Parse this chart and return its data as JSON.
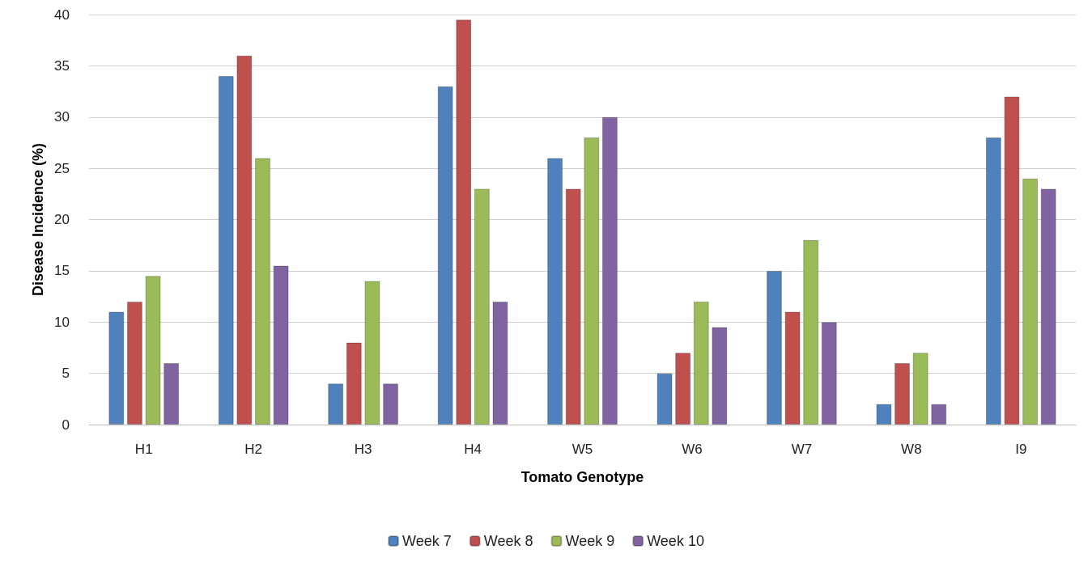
{
  "chart_data": {
    "type": "bar",
    "xlabel": "Tomato Genotype",
    "ylabel": "Disease Incidence (%)",
    "categories": [
      "H1",
      "H2",
      "H3",
      "H4",
      "W5",
      "W6",
      "W7",
      "W8",
      "I9"
    ],
    "series": [
      {
        "name": "Week 7",
        "color": "#4f81bd",
        "values": [
          11,
          34,
          4,
          33,
          26,
          5,
          15,
          2,
          28
        ]
      },
      {
        "name": "Week 8",
        "color": "#c0504d",
        "values": [
          12,
          36,
          8,
          39.5,
          23,
          7,
          11,
          6,
          32
        ]
      },
      {
        "name": "Week 9",
        "color": "#9bbb59",
        "values": [
          14.5,
          26,
          14,
          23,
          28,
          12,
          18,
          7,
          24
        ]
      },
      {
        "name": "Week 10",
        "color": "#8064a2",
        "values": [
          6,
          15.5,
          4,
          12,
          30,
          9.5,
          10,
          2,
          23
        ]
      }
    ],
    "ylim": [
      0,
      40
    ],
    "yticks": [
      0,
      5,
      10,
      15,
      20,
      25,
      30,
      35,
      40
    ],
    "grid": "y",
    "legend": "bottom"
  }
}
